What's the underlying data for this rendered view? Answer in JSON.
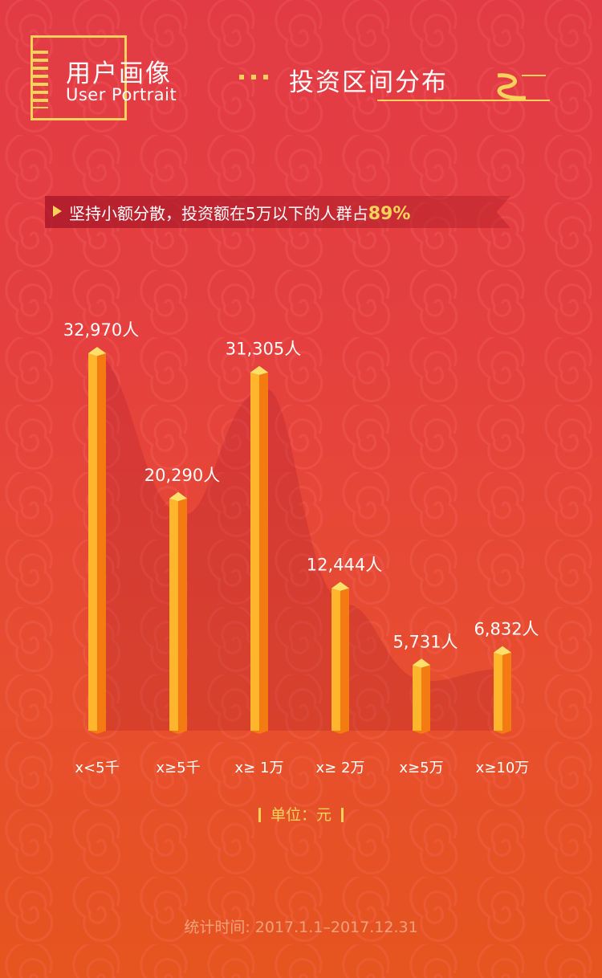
{
  "header": {
    "title_cn": "用户画像",
    "title_en": "User Portrait",
    "subtitle": "投资区间分布"
  },
  "banner": {
    "text": "坚持小额分散，投资额在5万以下的人群占",
    "percent": "89%"
  },
  "chart_data": {
    "type": "bar",
    "categories": [
      "x<5千",
      "x≥5千",
      "x≥ 1万",
      "x≥ 2万",
      "x≥5万",
      "x≥10万"
    ],
    "values": [
      32970,
      20290,
      31305,
      12444,
      5731,
      6832
    ],
    "value_labels": [
      "32,970人",
      "20,290人",
      "31,305人",
      "12,444人",
      "5,731人",
      "6,832人"
    ],
    "title": "",
    "xlabel": "",
    "ylabel": "",
    "ylim": [
      0,
      32970
    ],
    "grid": false,
    "colors": {
      "bar_front": "#ffb62d",
      "bar_side": "#f47a12",
      "bar_top": "#ffe06a"
    }
  },
  "unit": {
    "text": "单位：元"
  },
  "footer": {
    "text": "统计时间: 2017.1.1–2017.12.31"
  }
}
